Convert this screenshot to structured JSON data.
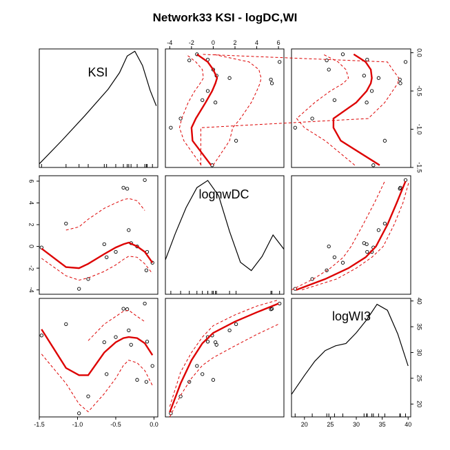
{
  "title": "Network33 KSI - logDC,WI",
  "chart_data": {
    "type": "scatter",
    "title": "Network33 KSI - logDC,WI",
    "kind": "scatterplot-matrix-with-loess-smooth-and-bands",
    "variables": [
      {
        "name": "KSI",
        "range": [
          -1.5,
          0.05
        ],
        "ticks": [
          -1.5,
          -1.0,
          -0.5,
          0.0
        ],
        "tick_labels": [
          "-1.5",
          "-1.0",
          "-0.5",
          "0.0"
        ]
      },
      {
        "name": "lognwDC",
        "range": [
          -4.4,
          6.5
        ],
        "ticks": [
          -4,
          -2,
          0,
          2,
          4,
          6
        ],
        "tick_labels": [
          "-4",
          "-2",
          "0",
          "2",
          "4",
          "6"
        ]
      },
      {
        "name": "logWI3",
        "range": [
          17.5,
          40.5
        ],
        "ticks": [
          20,
          25,
          30,
          35,
          40
        ],
        "tick_labels": [
          "20",
          "25",
          "30",
          "35",
          "40"
        ]
      }
    ],
    "observations": {
      "KSI": [
        -1.47,
        -1.15,
        -0.98,
        -0.86,
        -0.65,
        -0.62,
        -0.5,
        -0.4,
        -0.35,
        -0.33,
        -0.3,
        -0.22,
        -0.12,
        -0.1,
        -0.09,
        -0.02
      ],
      "lognwDC": [
        -0.1,
        2.1,
        -3.9,
        -3.0,
        0.2,
        -1.0,
        -0.5,
        5.4,
        5.3,
        1.5,
        0.3,
        0.0,
        6.1,
        -2.2,
        -0.5,
        -1.5
      ],
      "logWI3": [
        33.3,
        35.5,
        18.2,
        21.5,
        32.0,
        25.8,
        33.0,
        38.5,
        38.4,
        34.3,
        31.5,
        24.7,
        39.5,
        24.3,
        32.1,
        27.4
      ]
    },
    "smooths": {
      "lognwDC_vs_KSI": {
        "x": [
          -1.47,
          -1.15,
          -0.98,
          -0.86,
          -0.65,
          -0.5,
          -0.4,
          -0.33,
          -0.22,
          -0.12,
          -0.02
        ],
        "fit": [
          -0.2,
          -1.9,
          -2.0,
          -1.6,
          -0.7,
          -0.1,
          0.2,
          0.35,
          0.0,
          -0.5,
          -1.5
        ],
        "upper": [
          null,
          1.5,
          1.8,
          2.5,
          3.5,
          4.0,
          4.3,
          4.4,
          4.2,
          3.3,
          null
        ],
        "lower": [
          -1.1,
          -2.7,
          -3.1,
          -2.9,
          -2.3,
          -1.7,
          -1.2,
          -0.9,
          -1.0,
          -1.6,
          -2.5
        ]
      },
      "logWI3_vs_KSI": {
        "x": [
          -1.47,
          -1.15,
          -0.98,
          -0.86,
          -0.65,
          -0.5,
          -0.4,
          -0.33,
          -0.22,
          -0.12,
          -0.02
        ],
        "fit": [
          34.5,
          27.0,
          25.6,
          25.6,
          30.0,
          32.0,
          32.8,
          33.0,
          32.8,
          31.8,
          29.5
        ],
        "upper": [
          null,
          null,
          null,
          32.3,
          35.5,
          37.0,
          38.0,
          38.2,
          37.0,
          36.0,
          null
        ],
        "lower": [
          29.7,
          24.0,
          20.0,
          18.5,
          22.0,
          25.0,
          27.5,
          28.5,
          28.0,
          26.5,
          23.6
        ]
      },
      "logWI3_vs_lognwDC": {
        "x": [
          -4.0,
          -3.0,
          -2.0,
          -1.0,
          0.0,
          2.0,
          4.0,
          6.0
        ],
        "fit": [
          18.4,
          24.0,
          28.5,
          31.8,
          33.8,
          36.0,
          37.8,
          39.5
        ],
        "upper": [
          19.5,
          26.2,
          30.0,
          33.0,
          35.2,
          37.3,
          39.0,
          40.2
        ],
        "lower": [
          17.5,
          21.7,
          25.0,
          27.5,
          29.0,
          31.3,
          33.5,
          35.5
        ]
      }
    },
    "densities": {
      "KSI": {
        "x": [
          -1.5,
          -1.2,
          -0.9,
          -0.6,
          -0.45,
          -0.35,
          -0.25,
          -0.15,
          -0.05,
          0.03
        ],
        "y": [
          0.03,
          0.23,
          0.44,
          0.66,
          0.8,
          0.94,
          0.98,
          0.86,
          0.65,
          0.52
        ]
      },
      "lognwDC": {
        "x": [
          -4.4,
          -3.5,
          -2.5,
          -1.5,
          -0.5,
          0.5,
          1.5,
          2.5,
          3.5,
          4.5,
          5.5,
          6.5
        ],
        "y": [
          0.29,
          0.51,
          0.73,
          0.9,
          0.96,
          0.83,
          0.53,
          0.27,
          0.2,
          0.32,
          0.5,
          0.38
        ]
      },
      "logWI3": {
        "x": [
          17.5,
          20,
          22,
          24,
          26,
          28,
          30,
          32,
          34,
          36,
          38,
          40
        ],
        "y": [
          0.19,
          0.35,
          0.47,
          0.56,
          0.6,
          0.62,
          0.71,
          0.82,
          0.95,
          0.9,
          0.7,
          0.43
        ]
      }
    },
    "colors": {
      "points": "#000000",
      "smooth": "#dd0000",
      "density": "#000000"
    }
  }
}
